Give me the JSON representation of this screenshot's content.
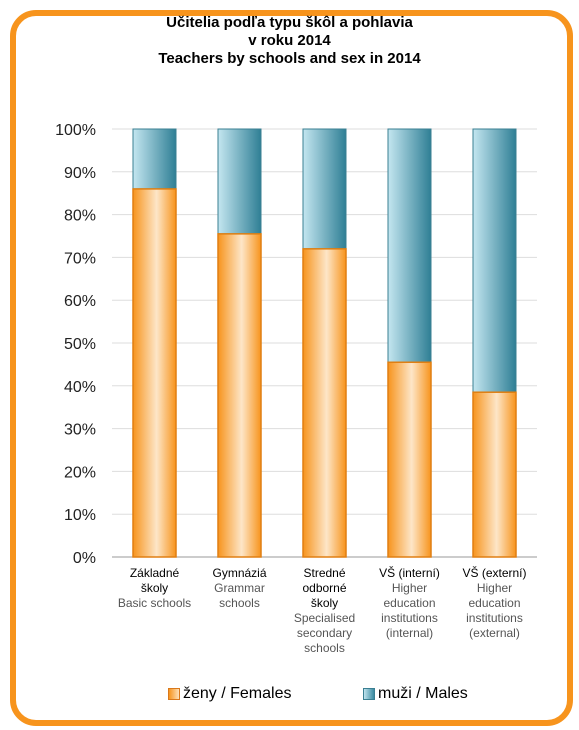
{
  "chart_data": {
    "type": "bar",
    "stacked": true,
    "title_lines": [
      "Učitelia podľa typu škôl a pohlavia",
      "v roku 2014",
      "Teachers  by schools  and sex in 2014"
    ],
    "categories": [
      {
        "sk": [
          "Základné",
          "školy"
        ],
        "en": [
          "Basic schools"
        ]
      },
      {
        "sk": [
          "Gymnáziá"
        ],
        "en": [
          "Grammar",
          "schools"
        ]
      },
      {
        "sk": [
          "Stredné",
          "odborné",
          "školy"
        ],
        "en": [
          "Specialised",
          "secondary",
          "schools"
        ]
      },
      {
        "sk": [
          "VŠ (interní)"
        ],
        "en": [
          "Higher",
          "education",
          "institutions",
          "(internal)"
        ]
      },
      {
        "sk": [
          "VŠ (externí)"
        ],
        "en": [
          "Higher",
          "education",
          "institutions",
          "(external)"
        ]
      }
    ],
    "series": [
      {
        "name": "ženy / Females",
        "values": [
          86,
          75.5,
          72,
          45.5,
          38.5
        ],
        "color": "#f7941d"
      },
      {
        "name": "muži / Males",
        "values": [
          14,
          24.5,
          28,
          54.5,
          61.5
        ],
        "color": "#3a8aa0"
      }
    ],
    "ylim": [
      0,
      100
    ],
    "yticks": [
      "0%",
      "10%",
      "20%",
      "30%",
      "40%",
      "50%",
      "60%",
      "70%",
      "80%",
      "90%",
      "100%"
    ],
    "grid": true,
    "legend_position": "bottom"
  }
}
